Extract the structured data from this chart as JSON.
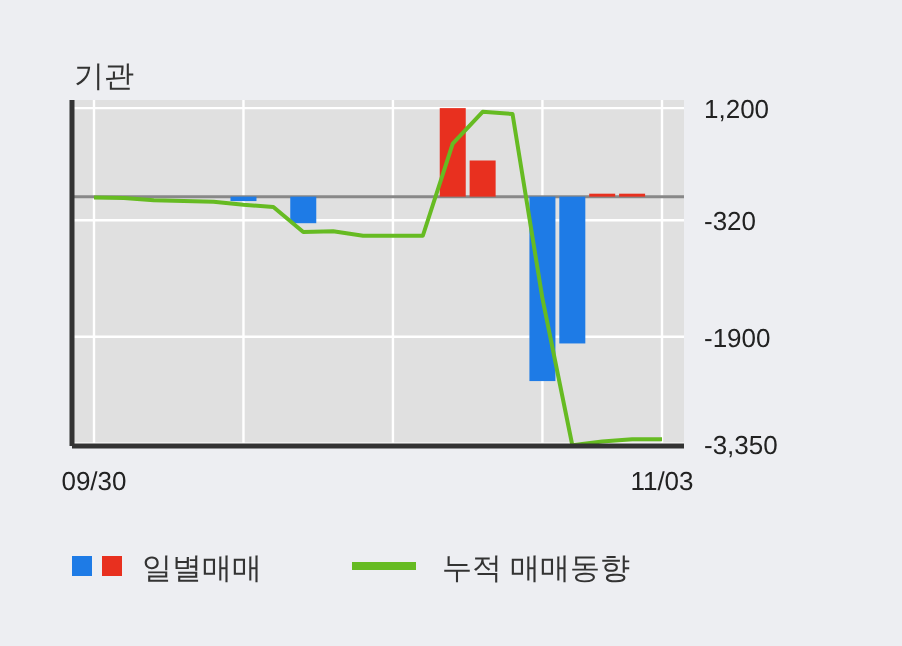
{
  "chart_data": {
    "type": "bar",
    "title": "기관",
    "categories": [
      "09/30",
      null,
      null,
      null,
      null,
      null,
      null,
      null,
      null,
      null,
      null,
      null,
      null,
      null,
      null,
      null,
      null,
      null,
      null,
      "11/03"
    ],
    "series": [
      {
        "name": "일별매매",
        "colors": [
          "#e8301f",
          "#e8301f",
          "#e8301f",
          "#e8301f",
          "#e8301f",
          "#1e7be6",
          "#e8301f",
          "#1e7be6",
          "#e8301f",
          "#e8301f",
          "#e8301f",
          "#e8301f",
          "#e8301f",
          "#e8301f",
          "#e8301f",
          "#1e7be6",
          "#1e7be6",
          "#e8301f",
          "#e8301f",
          "#e8301f"
        ],
        "values": [
          null,
          null,
          null,
          null,
          null,
          -60,
          null,
          -360,
          null,
          null,
          null,
          null,
          1200,
          490,
          null,
          -2500,
          -1990,
          40,
          40,
          null
        ]
      },
      {
        "name": "누적 매매동향",
        "type": "line",
        "color": "#66bb22",
        "values": [
          -10,
          -20,
          -50,
          -60,
          -70,
          -110,
          -140,
          -480,
          -470,
          -530,
          -530,
          -530,
          720,
          1150,
          1120,
          -1380,
          -3370,
          -3320,
          -3290,
          -3290
        ]
      }
    ],
    "ylim": [
      -3380,
      1310
    ],
    "yticks": [
      {
        "value": 1200,
        "label": "1,200"
      },
      -320,
      -1900,
      {
        "value": -3350,
        "label": "-3,350"
      }
    ],
    "ref_lines": [
      {
        "axis": "y",
        "value": 0,
        "color": "#888888"
      }
    ],
    "grid": true,
    "legend": "bottom"
  }
}
